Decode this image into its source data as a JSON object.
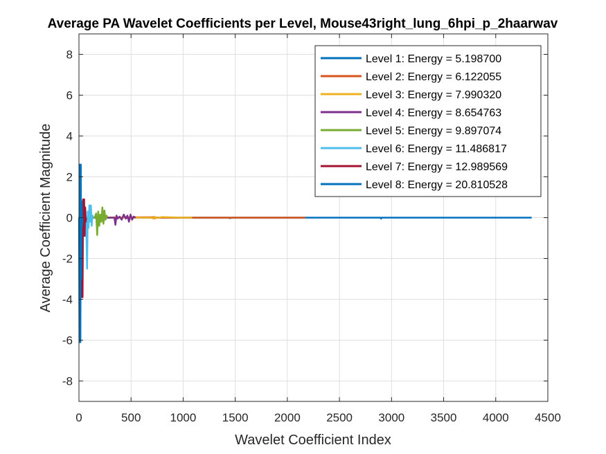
{
  "chart_data": {
    "type": "line",
    "title": "Average PA Wavelet Coefficients per Level, Mouse43right_lung_6hpi_p_2haarwav",
    "xlabel": "Wavelet Coefficient Index",
    "ylabel": "Average Coefficient Magnitude",
    "xlim": [
      0,
      4500
    ],
    "ylim": [
      -9,
      9
    ],
    "xticks": [
      0,
      500,
      1000,
      1500,
      2000,
      2500,
      3000,
      3500,
      4000,
      4500
    ],
    "yticks": [
      -8,
      -6,
      -4,
      -2,
      0,
      2,
      4,
      6,
      8
    ],
    "grid": true,
    "legend_position": "top-right",
    "series": [
      {
        "name": "Level 1: Energy = 5.198700",
        "color": "#0072BD",
        "x": [
          1,
          1000,
          1445,
          1450,
          1460,
          2000,
          2895,
          2900,
          2905,
          4345
        ],
        "y": [
          0,
          0,
          0,
          -0.03,
          0,
          0,
          0,
          -0.05,
          0,
          0
        ]
      },
      {
        "name": "Level 2: Energy = 6.122055",
        "color": "#D95319",
        "x": [
          1,
          720,
          730,
          740,
          2172
        ],
        "y": [
          0,
          0.02,
          -0.03,
          0,
          0
        ]
      },
      {
        "name": "Level 3: Energy = 7.990320",
        "color": "#EDB120",
        "x": [
          1,
          700,
          715,
          725,
          740,
          800,
          1000,
          1086
        ],
        "y": [
          0,
          0,
          -0.05,
          0.05,
          -0.02,
          0.03,
          0,
          0
        ]
      },
      {
        "name": "Level 4: Energy = 8.654763",
        "color": "#7E2F8E",
        "x": [
          1,
          340,
          350,
          360,
          370,
          390,
          410,
          430,
          450,
          465,
          480,
          495,
          510,
          525,
          543
        ],
        "y": [
          0,
          0,
          -0.35,
          0.1,
          -0.05,
          0.05,
          -0.1,
          0.15,
          -0.05,
          0.1,
          -0.2,
          0.15,
          -0.1,
          0.05,
          0
        ]
      },
      {
        "name": "Level 5: Energy = 9.897074",
        "color": "#77AC30",
        "x": [
          1,
          150,
          165,
          175,
          185,
          195,
          205,
          215,
          225,
          235,
          245,
          255,
          265,
          272
        ],
        "y": [
          0,
          0,
          0.2,
          -0.85,
          0.3,
          -0.4,
          0.15,
          -0.2,
          0.5,
          -0.3,
          0.35,
          -0.1,
          0.1,
          0
        ]
      },
      {
        "name": "Level 6: Energy = 11.486817",
        "color": "#4DBEEE",
        "x": [
          1,
          55,
          62,
          70,
          78,
          85,
          92,
          100,
          108,
          115,
          122,
          130,
          136
        ],
        "y": [
          0,
          0,
          0.4,
          -0.3,
          -2.5,
          0.3,
          -0.5,
          0.6,
          -0.2,
          0.6,
          -0.4,
          0.1,
          0
        ]
      },
      {
        "name": "Level 7: Energy = 12.989569",
        "color": "#A2142F",
        "x": [
          1,
          25,
          30,
          35,
          40,
          45,
          50,
          55,
          60,
          65,
          68
        ],
        "y": [
          0,
          0.2,
          -3.9,
          -3.9,
          0.9,
          -0.5,
          0.9,
          -0.9,
          0.5,
          -0.2,
          0
        ]
      },
      {
        "name": "Level 8: Energy = 20.810528",
        "color": "#0072BD",
        "x": [
          1,
          5,
          10,
          14,
          18,
          22,
          26,
          30,
          34
        ],
        "y": [
          0,
          -6.1,
          2.6,
          -6.1,
          2.6,
          -3.0,
          0.8,
          -0.4,
          0
        ]
      }
    ]
  }
}
